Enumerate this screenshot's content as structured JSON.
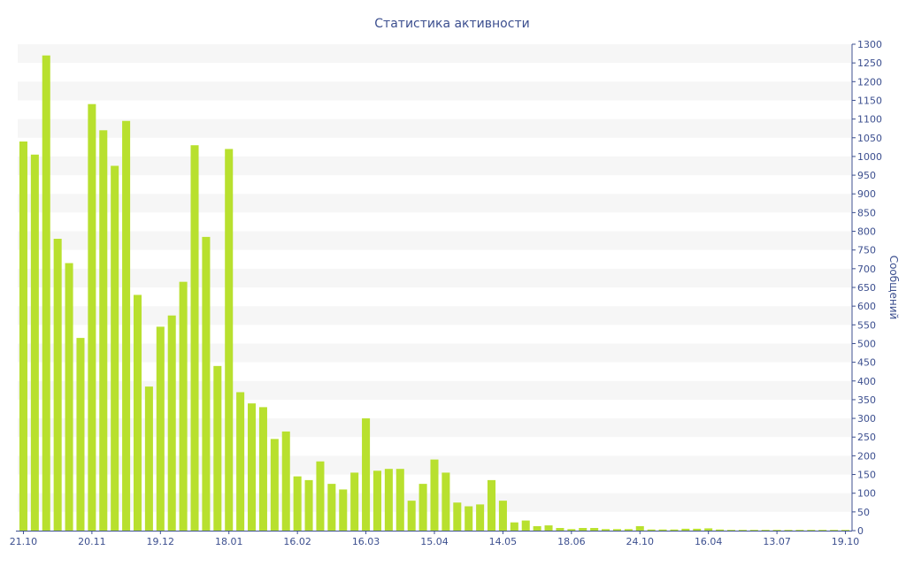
{
  "chart_data": {
    "type": "bar",
    "title": "Статистика активности",
    "xlabel": "",
    "ylabel": "Сообщений",
    "ylim": [
      0,
      1300
    ],
    "y_ticks": [
      0,
      50,
      100,
      150,
      200,
      250,
      300,
      350,
      400,
      450,
      500,
      550,
      600,
      650,
      700,
      750,
      800,
      850,
      900,
      950,
      1000,
      1050,
      1100,
      1150,
      1200,
      1250,
      1300
    ],
    "y_axis_side": "right",
    "grid": "alternating horizontal bands",
    "x_tick_labels": [
      "21.10",
      "20.11",
      "19.12",
      "18.01",
      "16.02",
      "16.03",
      "15.04",
      "14.05",
      "18.06",
      "24.10",
      "16.04",
      "13.07",
      "19.10"
    ],
    "x_tick_positions": [
      0,
      6,
      12,
      18,
      24,
      30,
      36,
      42,
      48,
      54,
      60,
      66,
      72
    ],
    "values": [
      1040,
      1005,
      1270,
      780,
      715,
      515,
      1140,
      1070,
      975,
      1095,
      630,
      385,
      545,
      575,
      665,
      1030,
      785,
      440,
      1020,
      370,
      340,
      330,
      245,
      265,
      145,
      135,
      185,
      125,
      110,
      155,
      300,
      160,
      165,
      165,
      80,
      125,
      190,
      155,
      75,
      65,
      70,
      135,
      80,
      22,
      27,
      12,
      14,
      7,
      4,
      7,
      7,
      4,
      4,
      4,
      12,
      3,
      3,
      3,
      5,
      5,
      6,
      3,
      2,
      2,
      2,
      2,
      2,
      1,
      2,
      2,
      2,
      1,
      1
    ],
    "colors": {
      "bar": "#b8e02e",
      "band": "#f6f6f6",
      "axis": "#3c4f8f",
      "text": "#3c4f8f"
    }
  }
}
